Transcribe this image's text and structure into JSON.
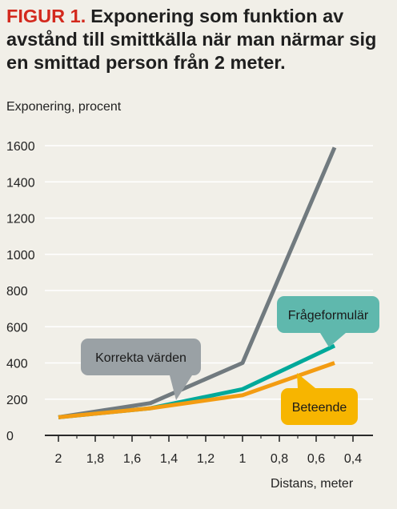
{
  "figure_label": "FIGUR 1.",
  "title": "Exponering som funktion av avstånd till smittkälla när man närmar sig en smittad person från 2 meter.",
  "colors": {
    "background": "#f1efe8",
    "figure_label": "#d3291d",
    "grid": "#ffffff",
    "axis": "#2a2a2a"
  },
  "chart_data": {
    "type": "line",
    "ylabel": "Exponering, procent",
    "xlabel": "Distans, meter",
    "x_ticks": [
      "2",
      "1,8",
      "1,6",
      "1,4",
      "1,2",
      "1",
      "0,8",
      "0,6",
      "0,4"
    ],
    "y_ticks": [
      "0",
      "200",
      "400",
      "600",
      "800",
      "1000",
      "1200",
      "1400",
      "1600"
    ],
    "xlim": [
      2,
      0.4
    ],
    "ylim": [
      0,
      1600
    ],
    "grid": "horizontal",
    "series": [
      {
        "name": "Korrekta värden",
        "color": "#717a7f",
        "points": [
          [
            2.0,
            100
          ],
          [
            1.5,
            178
          ],
          [
            1.0,
            400
          ],
          [
            0.5,
            1590
          ]
        ]
      },
      {
        "name": "Frågeformulär",
        "color": "#00a99a",
        "points": [
          [
            2.0,
            100
          ],
          [
            1.5,
            150
          ],
          [
            1.0,
            255
          ],
          [
            0.5,
            495
          ]
        ]
      },
      {
        "name": "Beteende",
        "color": "#f39c12",
        "points": [
          [
            2.0,
            100
          ],
          [
            1.5,
            150
          ],
          [
            1.0,
            222
          ],
          [
            0.5,
            400
          ]
        ]
      }
    ],
    "callouts": [
      {
        "text": "Korrekta värden",
        "color": "#9aa1a5",
        "text_color": "#1a1a1a",
        "series": 0
      },
      {
        "text": "Frågeformulär",
        "color": "#5fb8ad",
        "text_color": "#1a1a1a",
        "series": 1
      },
      {
        "text": "Beteende",
        "color": "#f7b500",
        "text_color": "#1a1a1a",
        "series": 2
      }
    ]
  }
}
